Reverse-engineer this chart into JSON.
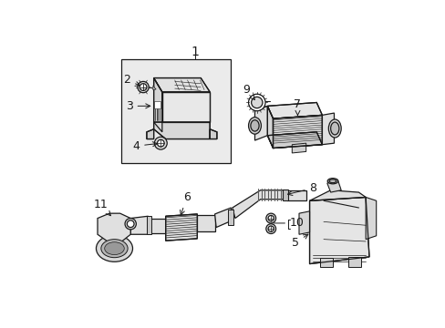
{
  "background_color": "#ffffff",
  "line_color": "#1a1a1a",
  "label_color": "#1a1a1a",
  "fig_width": 4.89,
  "fig_height": 3.6,
  "dpi": 100,
  "font_size": 9,
  "box_fill": "#ebebeb",
  "part_fill": "#e8e8e8",
  "part_fill2": "#d8d8d8",
  "white": "#ffffff"
}
